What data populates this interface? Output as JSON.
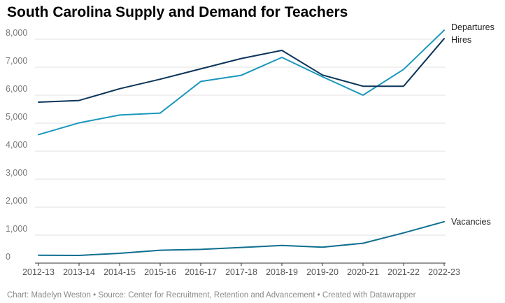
{
  "chart_data": {
    "type": "line",
    "title": "South Carolina Supply and Demand for Teachers",
    "x": [
      "2012-13",
      "2013-14",
      "2014-15",
      "2015-16",
      "2016-17",
      "2017-18",
      "2018-19",
      "2019-20",
      "2020-21",
      "2021-22",
      "2022-23"
    ],
    "series": [
      {
        "name": "Departures",
        "color": "#1a97bd",
        "values": [
          4590,
          5010,
          5290,
          5360,
          6490,
          6710,
          7350,
          6660,
          6000,
          6920,
          8320
        ]
      },
      {
        "name": "Hires",
        "color": "#0d3559",
        "values": [
          5750,
          5810,
          6230,
          6570,
          6940,
          7310,
          7600,
          6720,
          6320,
          6320,
          8020
        ]
      },
      {
        "name": "Vacancies",
        "color": "#0f6f8f",
        "values": [
          280,
          275,
          350,
          460,
          490,
          560,
          630,
          570,
          710,
          1080,
          1480
        ]
      }
    ],
    "y_ticks": [
      "0",
      "1,000",
      "2,000",
      "3,000",
      "4,000",
      "5,000",
      "6,000",
      "7,000",
      "8,000"
    ],
    "ylim": [
      0,
      8400
    ],
    "grid": true,
    "legend": "direct labels at line ends (right)"
  },
  "footer": {
    "credit": "Chart: Madelyn Weston • Source: Center for Recruitment, Retention and Advancement • Created with Datawrapper"
  }
}
